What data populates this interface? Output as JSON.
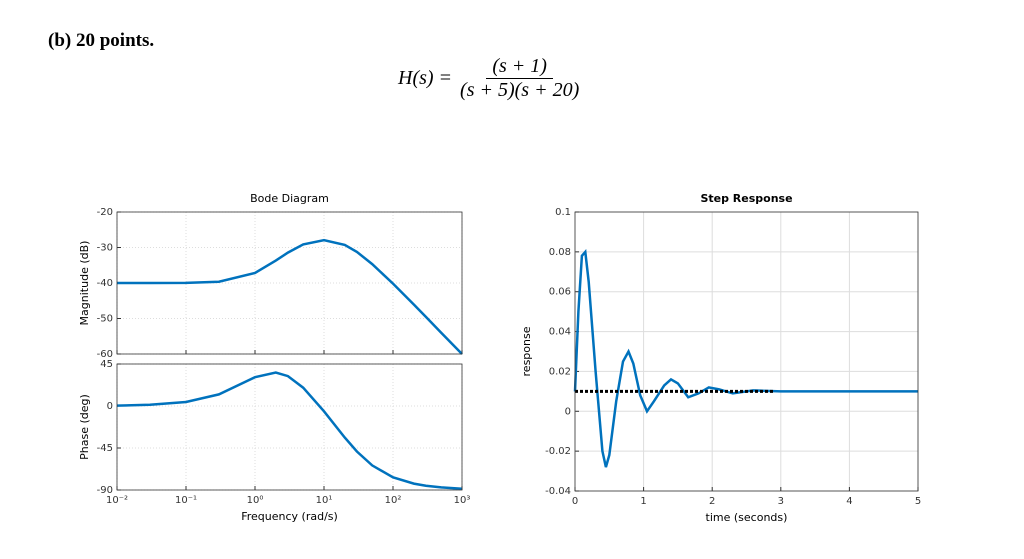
{
  "header": {
    "title": "(b) 20 points."
  },
  "equation": {
    "lhs": "H(s) =",
    "numerator": "(s + 1)",
    "denominator": "(s + 5)(s + 20)"
  },
  "chart_data": [
    {
      "type": "line",
      "title": "Bode Diagram",
      "ylabel": "Magnitude (dB)",
      "xscale": "log",
      "grid": true,
      "x": [
        0.01,
        0.03,
        0.1,
        0.3,
        1,
        2,
        3,
        5,
        10,
        20,
        30,
        50,
        100,
        200,
        300,
        500,
        1000
      ],
      "series": [
        {
          "color": "#0072bd",
          "values": [
            -40.0,
            -40.0,
            -39.96,
            -39.64,
            -37.17,
            -33.7,
            -31.43,
            -29.12,
            -27.92,
            -29.28,
            -31.25,
            -34.67,
            -40.18,
            -46.06,
            -49.56,
            -53.99,
            -60.0
          ]
        }
      ],
      "xlim": [
        0.01,
        1000
      ],
      "ylim": [
        -60,
        -20
      ],
      "yticks": [
        -20,
        -30,
        -40,
        -50,
        -60
      ]
    },
    {
      "type": "line",
      "ylabel": "Phase (deg)",
      "xlabel": "Frequency (rad/s)",
      "xscale": "log",
      "grid": true,
      "x": [
        0.01,
        0.03,
        0.1,
        0.3,
        1,
        2,
        3,
        5,
        10,
        20,
        30,
        50,
        100,
        200,
        300,
        500,
        1000
      ],
      "series": [
        {
          "color": "#0072bd",
          "values": [
            0.43,
            1.29,
            4.27,
            12.41,
            30.83,
            35.92,
            32.08,
            19.65,
            -5.71,
            -33.82,
            -48.76,
            -63.64,
            -76.4,
            -83.15,
            -85.43,
            -87.25,
            -88.62
          ]
        }
      ],
      "xlim": [
        0.01,
        1000
      ],
      "ylim": [
        -90,
        45
      ],
      "yticks": [
        45,
        0,
        -45,
        -90
      ],
      "xticks": [
        {
          "value": 0.01,
          "label": "10⁻²"
        },
        {
          "value": 0.1,
          "label": "10⁻¹"
        },
        {
          "value": 1,
          "label": "10⁰"
        },
        {
          "value": 10,
          "label": "10¹"
        },
        {
          "value": 100,
          "label": "10²"
        },
        {
          "value": 1000,
          "label": "10³"
        }
      ]
    },
    {
      "type": "line",
      "title": "Step Response",
      "ylabel": "response",
      "xlabel": "time (seconds)",
      "grid": true,
      "series": [
        {
          "color": "#0072bd",
          "x": [
            0,
            0.05,
            0.1,
            0.15,
            0.2,
            0.3,
            0.4,
            0.45,
            0.5,
            0.6,
            0.7,
            0.78,
            0.85,
            0.95,
            1.05,
            1.15,
            1.3,
            1.4,
            1.5,
            1.65,
            1.8,
            1.95,
            2.1,
            2.3,
            2.6,
            3,
            4,
            5
          ],
          "values": [
            0.01,
            0.05,
            0.078,
            0.08,
            0.065,
            0.02,
            -0.02,
            -0.028,
            -0.022,
            0.005,
            0.025,
            0.03,
            0.024,
            0.008,
            0.0,
            0.005,
            0.013,
            0.016,
            0.014,
            0.007,
            0.009,
            0.012,
            0.011,
            0.009,
            0.0105,
            0.01,
            0.01,
            0.01
          ]
        },
        {
          "color": "#000000",
          "style": "dotted",
          "x": [
            0,
            2.9
          ],
          "values": [
            0.01,
            0.01
          ]
        }
      ],
      "xlim": [
        0,
        5
      ],
      "ylim": [
        -0.04,
        0.1
      ],
      "xticks": [
        0,
        1,
        2,
        3,
        4,
        5
      ],
      "yticks": [
        -0.04,
        -0.02,
        0,
        0.02,
        0.04,
        0.06,
        0.08,
        0.1
      ]
    }
  ]
}
